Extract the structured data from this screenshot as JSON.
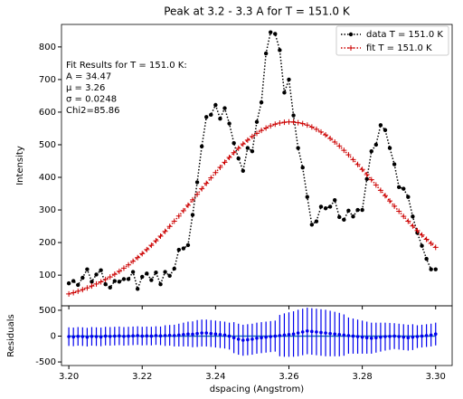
{
  "chart_data": [
    {
      "type": "line",
      "title": "Peak at 3.2 - 3.3 A for T = 151.0 K",
      "ylabel": "Intensity",
      "annotation": [
        "Fit Results for T = 151.0 K:",
        "A = 34.47",
        "μ = 3.26",
        "σ = 0.0248",
        "Chi2=85.86"
      ],
      "legend": "upper right",
      "x": [
        3.2,
        3.20125,
        3.2025,
        3.20375,
        3.205,
        3.20625,
        3.2075,
        3.20875,
        3.21,
        3.21125,
        3.2125,
        3.21375,
        3.215,
        3.21625,
        3.2175,
        3.21875,
        3.22,
        3.22125,
        3.2225,
        3.22375,
        3.225,
        3.22625,
        3.2275,
        3.22875,
        3.23,
        3.23125,
        3.2325,
        3.23375,
        3.235,
        3.23625,
        3.2375,
        3.23875,
        3.24,
        3.24125,
        3.2425,
        3.24375,
        3.245,
        3.24625,
        3.2475,
        3.24875,
        3.25,
        3.25125,
        3.2525,
        3.25375,
        3.255,
        3.25625,
        3.2575,
        3.25875,
        3.26,
        3.26125,
        3.2625,
        3.26375,
        3.265,
        3.26625,
        3.2675,
        3.26875,
        3.27,
        3.27125,
        3.2725,
        3.27375,
        3.275,
        3.27625,
        3.2775,
        3.27875,
        3.28,
        3.28125,
        3.2825,
        3.28375,
        3.285,
        3.28625,
        3.2875,
        3.28875,
        3.29,
        3.29125,
        3.2925,
        3.29375,
        3.295,
        3.29625,
        3.2975,
        3.29875,
        3.3
      ],
      "series": [
        {
          "name": "data T = 151.0 K",
          "color": "#000000",
          "marker": "circle",
          "values": [
            75,
            82,
            70,
            92,
            118,
            80,
            102,
            115,
            72,
            62,
            82,
            80,
            88,
            88,
            110,
            58,
            95,
            105,
            85,
            108,
            72,
            110,
            98,
            120,
            178,
            182,
            192,
            285,
            385,
            495,
            585,
            592,
            622,
            580,
            612,
            565,
            505,
            458,
            420,
            490,
            480,
            570,
            630,
            780,
            845,
            840,
            790,
            660,
            700,
            590,
            490,
            430,
            340,
            255,
            265,
            310,
            305,
            310,
            330,
            278,
            270,
            298,
            280,
            300,
            300,
            395,
            480,
            500,
            560,
            545,
            490,
            440,
            370,
            365,
            340,
            280,
            230,
            190,
            150,
            118,
            118
          ]
        },
        {
          "name": "fit T = 151.0 K",
          "color": "#cc0000",
          "marker": "plus",
          "values": [
            42.4,
            46.4,
            50.8,
            55.6,
            60.9,
            66.6,
            72.8,
            79.5,
            86.8,
            94.5,
            102.9,
            111.8,
            121.5,
            131.6,
            142.5,
            153.8,
            165.9,
            178.5,
            191.7,
            205.4,
            219.6,
            234.4,
            249.6,
            265.3,
            281.3,
            297.7,
            314.3,
            331.1,
            347.9,
            364.9,
            381.7,
            398.2,
            414.6,
            430.5,
            446.1,
            461,
            475.6,
            489.3,
            502.2,
            514,
            525.1,
            535.1,
            543.9,
            551.4,
            557.8,
            562.9,
            566.5,
            568.9,
            569.9,
            569.5,
            567.7,
            564.7,
            560.2,
            554.4,
            547.5,
            539.3,
            530,
            519.5,
            508.3,
            496,
            482.9,
            468.9,
            454.6,
            439.6,
            424.3,
            408.5,
            392.6,
            376.5,
            360.1,
            343.9,
            327.7,
            311.7,
            295.9,
            280.5,
            265.4,
            250.8,
            236.6,
            223,
            209.9,
            197.3,
            185.3
          ]
        }
      ],
      "xlim": [
        3.198,
        3.3045
      ],
      "xticks": [
        3.2,
        3.22,
        3.24,
        3.26,
        3.28,
        3.3
      ],
      "ylim": [
        6,
        869
      ],
      "yticks": [
        100,
        200,
        300,
        400,
        500,
        600,
        700,
        800
      ]
    },
    {
      "type": "errorbar",
      "ylabel": "Residuals",
      "xlabel": "dspacing (Angstrom)",
      "color": "#0000ee",
      "reference_line": 0,
      "reference_color": "#1f77b4",
      "x": [
        3.2,
        3.20125,
        3.2025,
        3.20375,
        3.205,
        3.20625,
        3.2075,
        3.20875,
        3.21,
        3.21125,
        3.2125,
        3.21375,
        3.215,
        3.21625,
        3.2175,
        3.21875,
        3.22,
        3.22125,
        3.2225,
        3.22375,
        3.225,
        3.22625,
        3.2275,
        3.22875,
        3.23,
        3.23125,
        3.2325,
        3.23375,
        3.235,
        3.23625,
        3.2375,
        3.23875,
        3.24,
        3.24125,
        3.2425,
        3.24375,
        3.245,
        3.24625,
        3.2475,
        3.24875,
        3.25,
        3.25125,
        3.2525,
        3.25375,
        3.255,
        3.25625,
        3.2575,
        3.25875,
        3.26,
        3.26125,
        3.2625,
        3.26375,
        3.265,
        3.26625,
        3.2675,
        3.26875,
        3.27,
        3.27125,
        3.2725,
        3.27375,
        3.275,
        3.27625,
        3.2775,
        3.27875,
        3.28,
        3.28125,
        3.2825,
        3.28375,
        3.285,
        3.28625,
        3.2875,
        3.28875,
        3.29,
        3.29125,
        3.2925,
        3.29375,
        3.295,
        3.29625,
        3.2975,
        3.29875,
        3.3
      ],
      "values": [
        -10,
        -15,
        -5,
        -10,
        -20,
        -5,
        -10,
        -15,
        0,
        -5,
        0,
        5,
        -5,
        0,
        5,
        10,
        0,
        5,
        0,
        10,
        5,
        10,
        15,
        10,
        20,
        30,
        40,
        35,
        50,
        60,
        60,
        50,
        40,
        30,
        20,
        0,
        -30,
        -60,
        -80,
        -70,
        -60,
        -40,
        -30,
        -20,
        -10,
        0,
        10,
        20,
        30,
        40,
        60,
        80,
        100,
        90,
        80,
        70,
        60,
        50,
        40,
        30,
        20,
        10,
        0,
        -10,
        -20,
        -30,
        -40,
        -30,
        -20,
        -10,
        -5,
        0,
        -10,
        -20,
        -30,
        -20,
        -10,
        0,
        10,
        20,
        40
      ],
      "errors": [
        180,
        180,
        180,
        180,
        180,
        180,
        180,
        180,
        180,
        180,
        180,
        180,
        180,
        180,
        180,
        180,
        180,
        180,
        180,
        180,
        180,
        200,
        200,
        210,
        220,
        230,
        240,
        250,
        260,
        260,
        260,
        260,
        260,
        260,
        260,
        260,
        300,
        300,
        300,
        300,
        300,
        300,
        300,
        300,
        300,
        300,
        400,
        420,
        430,
        440,
        450,
        450,
        450,
        450,
        450,
        450,
        450,
        440,
        430,
        420,
        400,
        350,
        340,
        330,
        320,
        310,
        300,
        290,
        280,
        270,
        260,
        250,
        250,
        250,
        250,
        250,
        220,
        220,
        220,
        220,
        220
      ],
      "xlim": [
        3.198,
        3.3045
      ],
      "xticks": [
        {
          "value": 3.2,
          "label": "3.20"
        },
        {
          "value": 3.22,
          "label": "3.22"
        },
        {
          "value": 3.24,
          "label": "3.24"
        },
        {
          "value": 3.26,
          "label": "3.26"
        },
        {
          "value": 3.28,
          "label": "3.28"
        },
        {
          "value": 3.3,
          "label": "3.30"
        }
      ],
      "ylim": [
        -569,
        586
      ],
      "yticks": [
        -500,
        0,
        500
      ]
    }
  ]
}
